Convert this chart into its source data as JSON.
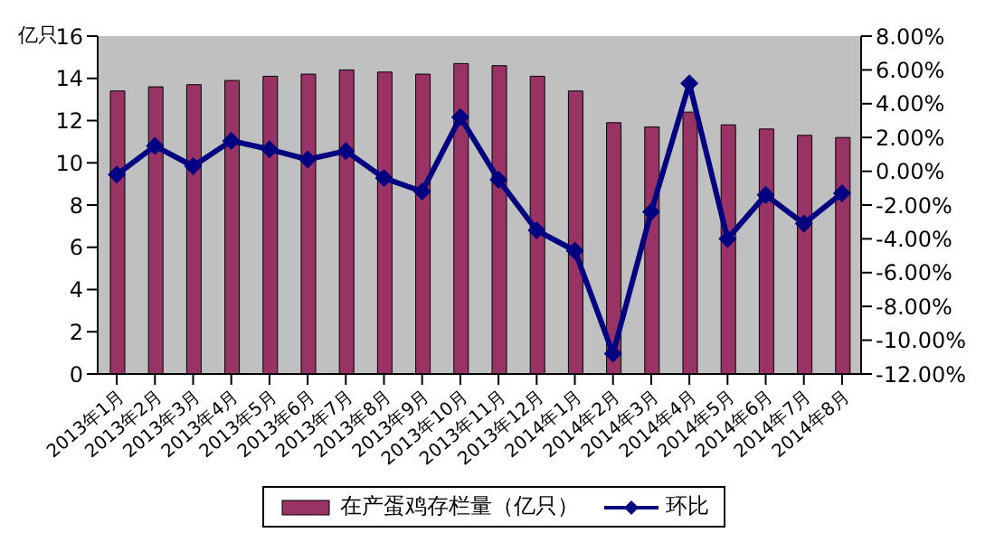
{
  "chart_data": {
    "type": "bar",
    "ylabel": "亿只",
    "categories": [
      "2013年1月",
      "2013年2月",
      "2013年3月",
      "2013年4月",
      "2013年5月",
      "2013年6月",
      "2013年7月",
      "2013年8月",
      "2013年9月",
      "2013年10月",
      "2013年11月",
      "2013年12月",
      "2014年1月",
      "2014年2月",
      "2014年3月",
      "2014年4月",
      "2014年5月",
      "2014年6月",
      "2014年7月",
      "2014年8月"
    ],
    "series": [
      {
        "name": "在产蛋鸡存栏量（亿只）",
        "color": "#993366",
        "values": [
          13.4,
          13.6,
          13.7,
          13.9,
          14.1,
          14.2,
          14.4,
          14.3,
          14.2,
          14.7,
          14.6,
          14.1,
          13.4,
          11.9,
          11.7,
          12.4,
          11.8,
          11.6,
          11.3,
          11.2
        ]
      },
      {
        "name": "环比",
        "type": "line",
        "axis": "y2",
        "color": "#000080",
        "marker": "diamond",
        "values": [
          -0.2,
          1.5,
          0.3,
          1.8,
          1.3,
          0.7,
          1.2,
          -0.4,
          -1.2,
          3.2,
          -0.5,
          -3.5,
          -4.7,
          -10.8,
          -2.4,
          5.2,
          -4.0,
          -1.4,
          -3.1,
          -1.3
        ]
      }
    ],
    "ylim": [
      0,
      16
    ],
    "yticks": [
      0,
      2,
      4,
      6,
      8,
      10,
      12,
      14,
      16
    ],
    "y2lim": [
      -12,
      8
    ],
    "y2ticks": [
      {
        "value": -12,
        "label": "-12.00%"
      },
      {
        "value": -10,
        "label": "-10.00%"
      },
      {
        "value": -8,
        "label": "-8.00%"
      },
      {
        "value": -6,
        "label": "-6.00%"
      },
      {
        "value": -4,
        "label": "-4.00%"
      },
      {
        "value": -2,
        "label": "-2.00%"
      },
      {
        "value": 0,
        "label": "0.00%"
      },
      {
        "value": 2,
        "label": "2.00%"
      },
      {
        "value": 4,
        "label": "4.00%"
      },
      {
        "value": 6,
        "label": "6.00%"
      },
      {
        "value": 8,
        "label": "8.00%"
      }
    ],
    "grid": false,
    "legend": "bottom"
  }
}
